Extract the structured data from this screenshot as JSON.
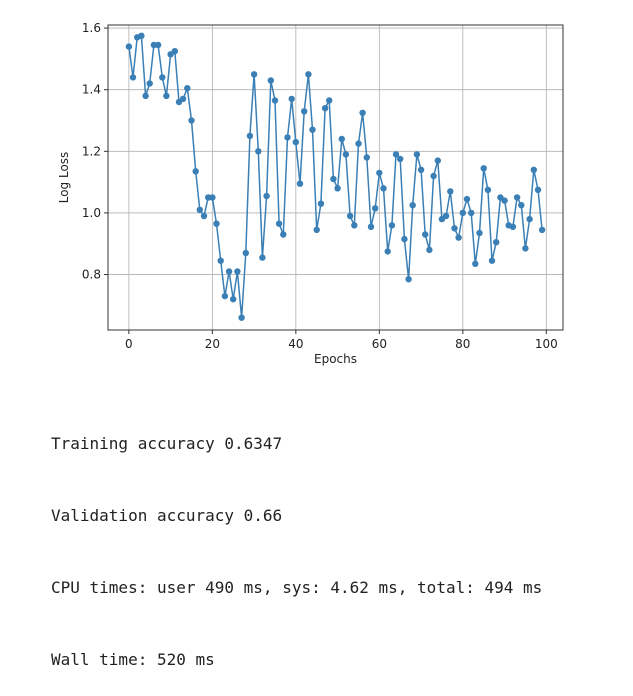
{
  "chart_data": {
    "type": "line",
    "xlabel": "Epochs",
    "ylabel": "Log Loss",
    "xlim": [
      -5,
      104
    ],
    "ylim": [
      0.62,
      1.61
    ],
    "xticks": [
      0,
      20,
      40,
      60,
      80,
      100
    ],
    "yticks": [
      0.8,
      1.0,
      1.2,
      1.4,
      1.6
    ],
    "xtick_labels": [
      "0",
      "20",
      "40",
      "60",
      "80",
      "100"
    ],
    "ytick_labels": [
      "0.8",
      "1.0",
      "1.2",
      "1.4",
      "1.6"
    ],
    "grid": true,
    "color": "#3a7fb5",
    "marker": "circle",
    "series": [
      {
        "x": [
          0,
          1,
          2,
          3,
          4,
          5,
          6,
          7,
          8,
          9,
          10,
          11,
          12,
          13,
          14,
          15,
          16,
          17,
          18,
          19,
          20,
          21,
          22,
          23,
          24,
          25,
          26,
          27,
          28,
          29,
          30,
          31,
          32,
          33,
          34,
          35,
          36,
          37,
          38,
          39,
          40,
          41,
          42,
          43,
          44,
          45,
          46,
          47,
          48,
          49,
          50,
          51,
          52,
          53,
          54,
          55,
          56,
          57,
          58,
          59,
          60,
          61,
          62,
          63,
          64,
          65,
          66,
          67,
          68,
          69,
          70,
          71,
          72,
          73,
          74,
          75,
          76,
          77,
          78,
          79,
          80,
          81,
          82,
          83,
          84,
          85,
          86,
          87,
          88,
          89,
          90,
          91,
          92,
          93,
          94,
          95,
          96,
          97,
          98,
          99
        ],
        "y": [
          1.54,
          1.44,
          1.57,
          1.575,
          1.38,
          1.42,
          1.545,
          1.545,
          1.44,
          1.38,
          1.515,
          1.525,
          1.36,
          1.37,
          1.405,
          1.3,
          1.135,
          1.01,
          0.99,
          1.05,
          1.05,
          0.965,
          0.845,
          0.73,
          0.81,
          0.72,
          0.81,
          0.66,
          0.87,
          1.25,
          1.45,
          1.2,
          0.855,
          1.055,
          1.43,
          1.365,
          0.965,
          0.93,
          1.245,
          1.37,
          1.23,
          1.095,
          1.33,
          1.45,
          1.27,
          0.945,
          1.03,
          1.34,
          1.365,
          1.11,
          1.08,
          1.24,
          1.19,
          0.99,
          0.96,
          1.225,
          1.325,
          1.18,
          0.955,
          1.015,
          1.13,
          1.08,
          0.875,
          0.96,
          1.19,
          1.175,
          0.915,
          0.785,
          1.025,
          1.19,
          1.14,
          0.93,
          0.88,
          1.12,
          1.17,
          0.98,
          0.99,
          1.07,
          0.95,
          0.92,
          1.0,
          1.045,
          1.0,
          0.835,
          0.935,
          1.145,
          1.075,
          0.845,
          0.905,
          1.05,
          1.04,
          0.96,
          0.955,
          1.05,
          1.025,
          0.885,
          0.98,
          1.14,
          1.075,
          0.945
        ]
      }
    ]
  },
  "output": {
    "lines": [
      "Training accuracy 0.6347",
      "Validation accuracy 0.66",
      "CPU times: user 490 ms, sys: 4.62 ms, total: 494 ms",
      "Wall time: 520 ms"
    ]
  }
}
